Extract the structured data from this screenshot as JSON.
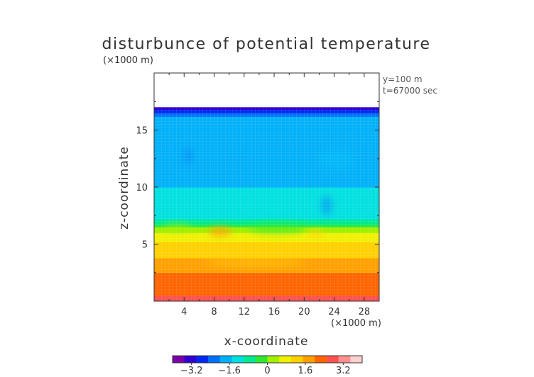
{
  "chart_data": {
    "type": "heatmap",
    "title": "disturbunce of potential temperature",
    "xlabel": "x-coordinate",
    "ylabel": "z-coordinate",
    "x_unit": "(×1000 m)",
    "y_unit": "(×1000 m)",
    "annotations": [
      "y=100 m",
      "t=67000 sec"
    ],
    "xlim": [
      0,
      30
    ],
    "ylim": [
      0,
      20
    ],
    "x_ticks": [
      4,
      8,
      12,
      16,
      20,
      24,
      28
    ],
    "y_ticks": [
      5,
      10,
      15
    ],
    "colorbar": {
      "range": [
        -4,
        4
      ],
      "tick_values": [
        -3.2,
        -1.6,
        0,
        1.6,
        3.2
      ],
      "tick_labels": [
        "−3.2",
        "−1.6",
        "0",
        "1.6",
        "3.2"
      ],
      "colors": [
        "#7a00a8",
        "#3000d0",
        "#0028f0",
        "#0070f8",
        "#00b0f8",
        "#00e0e0",
        "#00e890",
        "#30e830",
        "#a0f000",
        "#f0f000",
        "#ffd000",
        "#ffa000",
        "#ff6400",
        "#ff5050",
        "#ff9090",
        "#ffd0d0"
      ]
    },
    "data_top_z": 17,
    "profile": [
      {
        "z": 0,
        "value": 2.6
      },
      {
        "z": 2,
        "value": 2.2
      },
      {
        "z": 4,
        "value": 1.4
      },
      {
        "z": 5.5,
        "value": 0.9
      },
      {
        "z": 6.3,
        "value": 0.3
      },
      {
        "z": 6.8,
        "value": -0.6
      },
      {
        "z": 7.5,
        "value": -1.3
      },
      {
        "z": 10,
        "value": -1.5
      },
      {
        "z": 15,
        "value": -1.6
      },
      {
        "z": 16.2,
        "value": -2.0
      },
      {
        "z": 16.6,
        "value": -2.6
      },
      {
        "z": 17,
        "value": -3.6
      }
    ]
  }
}
